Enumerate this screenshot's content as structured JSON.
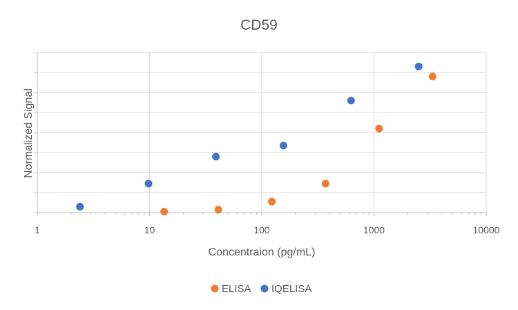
{
  "chart_data": {
    "type": "scatter",
    "title": "CD59",
    "xlabel": "Concentraion (pg/mL)",
    "ylabel": "Normalized Signal",
    "xscale": "log",
    "xlim": [
      1,
      10000
    ],
    "ylim": [
      0,
      8
    ],
    "x_tick_labels": [
      "1",
      "10",
      "100",
      "1000",
      "10000"
    ],
    "x_ticks": [
      1,
      10,
      100,
      1000,
      10000
    ],
    "y_tick_labels": [],
    "grid": true,
    "legend_position": "bottom",
    "series": [
      {
        "name": "ELISA",
        "color": "#ED7D31",
        "points": [
          {
            "x": 13.5,
            "y": 0.05
          },
          {
            "x": 41,
            "y": 0.15
          },
          {
            "x": 123,
            "y": 0.55
          },
          {
            "x": 370,
            "y": 1.45
          },
          {
            "x": 1110,
            "y": 4.2
          },
          {
            "x": 3330,
            "y": 6.8
          }
        ]
      },
      {
        "name": "IQELISA",
        "color": "#4472C4",
        "points": [
          {
            "x": 2.4,
            "y": 0.3
          },
          {
            "x": 9.8,
            "y": 1.45
          },
          {
            "x": 39,
            "y": 2.8
          },
          {
            "x": 156,
            "y": 3.35
          },
          {
            "x": 625,
            "y": 5.6
          },
          {
            "x": 2500,
            "y": 7.3
          }
        ]
      }
    ]
  }
}
